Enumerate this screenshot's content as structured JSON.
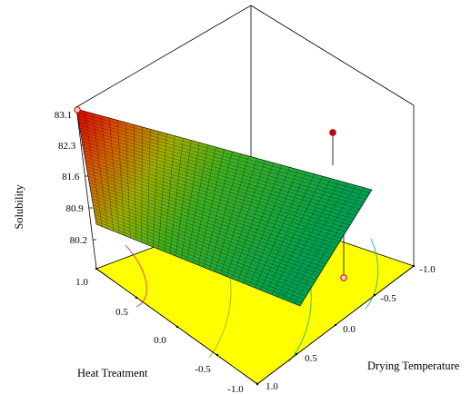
{
  "chart_data": {
    "type": "surface3d",
    "zlabel": "Solubility",
    "xlabel": "Heat Treatment",
    "ylabel": "Drying Temperature",
    "z_ticks": [
      "80.2",
      "80.9",
      "81.6",
      "82.3",
      "83.1"
    ],
    "x_ticks": [
      "1.0",
      "0.5",
      "0.0",
      "-0.5",
      "-1.0"
    ],
    "y_ticks": [
      "-1.0",
      "-0.5",
      "0.0",
      "0.5",
      "1.0"
    ],
    "zlim": [
      79.6,
      83.1
    ],
    "xlim": [
      -1.0,
      1.0
    ],
    "ylim": [
      -1.0,
      1.0
    ],
    "surface_corners": [
      {
        "heat_treatment": 1.0,
        "drying_temperature": 1.0,
        "solubility": 83.1
      },
      {
        "heat_treatment": 1.0,
        "drying_temperature": -1.0,
        "solubility": 80.9
      },
      {
        "heat_treatment": -1.0,
        "drying_temperature": -1.0,
        "solubility": 80.1
      },
      {
        "heat_treatment": -1.0,
        "drying_temperature": 1.0,
        "solubility": 79.7
      }
    ],
    "design_points": [
      {
        "heat_treatment": 1.0,
        "drying_temperature": 1.0,
        "solubility": 83.1,
        "position": "below-surface"
      },
      {
        "heat_treatment": -1.0,
        "drying_temperature": -1.0,
        "solubility": 82.4,
        "position": "above-surface"
      },
      {
        "heat_treatment": 0.0,
        "drying_temperature": -1.0,
        "solubility": 79.8,
        "position": "below-surface"
      }
    ],
    "colors": {
      "floor": "#ffff00",
      "surface_low": "#00a050",
      "surface_mid": "#88c000",
      "surface_high": "#e00000",
      "point_above": "#cc0000",
      "point_below": "#ffcccc"
    }
  }
}
